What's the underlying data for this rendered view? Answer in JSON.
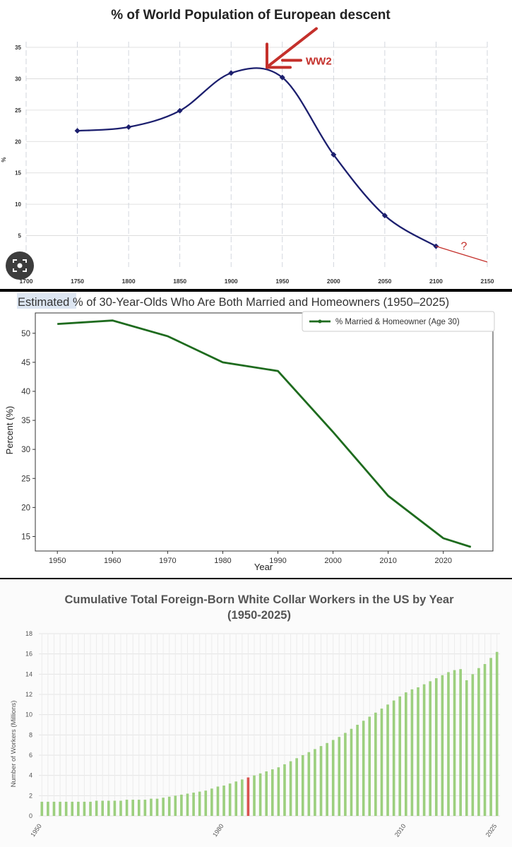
{
  "charts": [
    {
      "type": "line",
      "title": "% of World Population of European descent",
      "ylabel": "%",
      "xlabel": "",
      "xlim": [
        1700,
        2150
      ],
      "ylim": [
        0,
        35
      ],
      "xticks": [
        1700,
        1750,
        1800,
        1850,
        1900,
        1950,
        2000,
        2050,
        2100,
        2150
      ],
      "yticks": [
        5,
        10,
        15,
        20,
        25,
        30,
        35
      ],
      "series": [
        {
          "name": "European descent",
          "x": [
            1750,
            1800,
            1850,
            1900,
            1950,
            2000,
            2050,
            2100
          ],
          "y": [
            21.7,
            22.3,
            24.9,
            30.9,
            30.2,
            17.9,
            8.2,
            3.3
          ]
        }
      ],
      "projection": {
        "from": [
          2100,
          3.3
        ],
        "to": [
          2150,
          0.8
        ],
        "label": "?"
      },
      "annotation": {
        "text": "WW2",
        "x": 1935,
        "y": 31.8
      },
      "colors": {
        "line": "#1c1f6e",
        "accent": "#c4302b"
      }
    },
    {
      "type": "line",
      "title_highlight": "Estimated",
      "title_rest": " % of 30-Year-Olds Who Are Both Married and Homeowners (1950–2025)",
      "xlabel": "Year",
      "ylabel": "Percent (%)",
      "xlim": [
        1946,
        2029
      ],
      "ylim": [
        12.5,
        53.5
      ],
      "xticks": [
        1950,
        1960,
        1970,
        1980,
        1990,
        2000,
        2010,
        2020
      ],
      "yticks": [
        15,
        20,
        25,
        30,
        35,
        40,
        45,
        50
      ],
      "legend": "% Married & Homeowner (Age 30)",
      "series": [
        {
          "name": "% Married & Homeowner (Age 30)",
          "x": [
            1950,
            1960,
            1970,
            1980,
            1990,
            2000,
            2010,
            2020,
            2025
          ],
          "y": [
            51.6,
            52.2,
            49.5,
            45.0,
            43.5,
            33.0,
            22.0,
            14.7,
            13.2
          ]
        }
      ],
      "colors": {
        "line": "#1e6b1e",
        "highlight": "#dde6f2"
      }
    },
    {
      "type": "bar",
      "title_line1": "Cumulative Total Foreign-Born White Collar Workers in the US by Year",
      "title_line2": "(1950-2025)",
      "ylabel": "Number of Workers (Millions)",
      "xlabel": "",
      "ylim": [
        0,
        18
      ],
      "yticks": [
        0,
        2,
        4,
        6,
        8,
        10,
        12,
        14,
        16,
        18
      ],
      "xtick_labels": [
        {
          "year": 1950,
          "label": "1950"
        },
        {
          "year": 1980,
          "label": "1980"
        },
        {
          "year": 2010,
          "label": "2010"
        },
        {
          "year": 2025,
          "label": "2025"
        }
      ],
      "highlight_year": 1984,
      "start_year": 1950,
      "values": [
        1.4,
        1.4,
        1.4,
        1.4,
        1.4,
        1.4,
        1.4,
        1.4,
        1.4,
        1.5,
        1.5,
        1.5,
        1.5,
        1.5,
        1.6,
        1.6,
        1.6,
        1.6,
        1.7,
        1.7,
        1.8,
        1.9,
        2.0,
        2.1,
        2.2,
        2.3,
        2.4,
        2.5,
        2.7,
        2.9,
        3.0,
        3.2,
        3.4,
        3.6,
        3.8,
        4.0,
        4.2,
        4.4,
        4.6,
        4.8,
        5.1,
        5.4,
        5.7,
        6.0,
        6.3,
        6.6,
        6.9,
        7.2,
        7.5,
        7.8,
        8.2,
        8.6,
        9.0,
        9.4,
        9.8,
        10.2,
        10.6,
        11.0,
        11.4,
        11.8,
        12.2,
        12.5,
        12.7,
        13.0,
        13.3,
        13.6,
        13.9,
        14.2,
        14.4,
        14.5,
        13.4,
        14.0,
        14.6,
        15.0,
        15.6,
        16.2
      ],
      "colors": {
        "bar": "#9ccf7e",
        "highlight": "#d9534f",
        "grid": "#e4e4e4"
      }
    }
  ]
}
